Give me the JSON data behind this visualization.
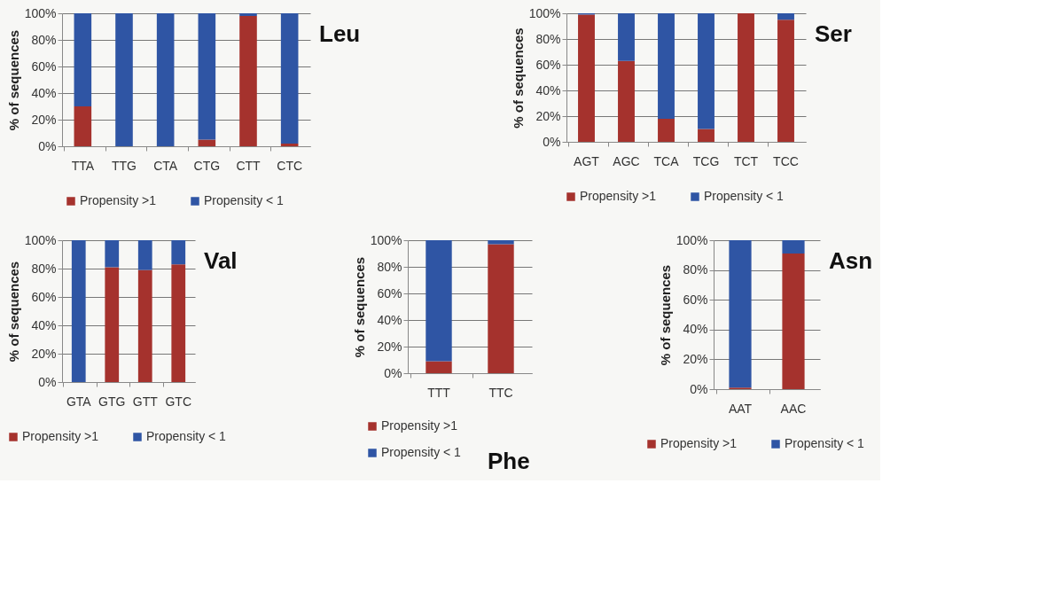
{
  "chart_data": [
    {
      "type": "bar",
      "title": "Leu",
      "ylabel": "% of sequences",
      "categories": [
        "TTA",
        "TTG",
        "CTA",
        "CTG",
        "CTT",
        "CTC"
      ],
      "stacked": true,
      "legend": "bottom",
      "grid": "y",
      "series": [
        {
          "name": "Propensity >1",
          "color": "#a5322d",
          "values": [
            30,
            0,
            0,
            5,
            98,
            2
          ]
        },
        {
          "name": "Propensity < 1",
          "color": "#2f55a4",
          "values": [
            70,
            100,
            100,
            95,
            2,
            98
          ]
        }
      ],
      "ylim": [
        0,
        100
      ],
      "yticks": [
        {
          "value": 0,
          "label": "0%"
        },
        {
          "value": 20,
          "label": "20%"
        },
        {
          "value": 40,
          "label": "40%"
        },
        {
          "value": 60,
          "label": "60%"
        },
        {
          "value": 80,
          "label": "80%"
        },
        {
          "value": 100,
          "label": "100%"
        }
      ]
    },
    {
      "type": "bar",
      "title": "Ser",
      "ylabel": "% of sequences",
      "categories": [
        "AGT",
        "AGC",
        "TCA",
        "TCG",
        "TCT",
        "TCC"
      ],
      "stacked": true,
      "legend": "bottom",
      "grid": "y",
      "series": [
        {
          "name": "Propensity >1",
          "color": "#a5322d",
          "values": [
            99,
            63,
            18,
            10,
            100,
            95
          ]
        },
        {
          "name": "Propensity < 1",
          "color": "#2f55a4",
          "values": [
            1,
            37,
            82,
            90,
            0,
            5
          ]
        }
      ],
      "ylim": [
        0,
        100
      ],
      "yticks": [
        {
          "value": 0,
          "label": "0%"
        },
        {
          "value": 20,
          "label": "20%"
        },
        {
          "value": 40,
          "label": "40%"
        },
        {
          "value": 60,
          "label": "60%"
        },
        {
          "value": 80,
          "label": "80%"
        },
        {
          "value": 100,
          "label": "100%"
        }
      ]
    },
    {
      "type": "bar",
      "title": "Val",
      "ylabel": "% of sequences",
      "categories": [
        "GTA",
        "GTG",
        "GTT",
        "GTC"
      ],
      "stacked": true,
      "legend": "bottom",
      "grid": "y",
      "series": [
        {
          "name": "Propensity >1",
          "color": "#a5322d",
          "values": [
            0,
            81,
            79,
            83
          ]
        },
        {
          "name": "Propensity < 1",
          "color": "#2f55a4",
          "values": [
            100,
            19,
            21,
            17
          ]
        }
      ],
      "ylim": [
        0,
        100
      ],
      "yticks": [
        {
          "value": 0,
          "label": "0%"
        },
        {
          "value": 20,
          "label": "20%"
        },
        {
          "value": 40,
          "label": "40%"
        },
        {
          "value": 60,
          "label": "60%"
        },
        {
          "value": 80,
          "label": "80%"
        },
        {
          "value": 100,
          "label": "100%"
        }
      ]
    },
    {
      "type": "bar",
      "title": "Phe",
      "ylabel": "% of sequences",
      "categories": [
        "TTT",
        "TTC"
      ],
      "stacked": true,
      "legend": "bottom left",
      "grid": "y",
      "series": [
        {
          "name": "Propensity >1",
          "color": "#a5322d",
          "values": [
            9,
            97
          ]
        },
        {
          "name": "Propensity < 1",
          "color": "#2f55a4",
          "values": [
            91,
            3
          ]
        }
      ],
      "ylim": [
        0,
        100
      ],
      "yticks": [
        {
          "value": 0,
          "label": "0%"
        },
        {
          "value": 20,
          "label": "20%"
        },
        {
          "value": 40,
          "label": "40%"
        },
        {
          "value": 60,
          "label": "60%"
        },
        {
          "value": 80,
          "label": "80%"
        },
        {
          "value": 100,
          "label": "100%"
        }
      ]
    },
    {
      "type": "bar",
      "title": "Asn",
      "ylabel": "% of sequences",
      "categories": [
        "AAT",
        "AAC"
      ],
      "stacked": true,
      "legend": "bottom",
      "grid": "y",
      "series": [
        {
          "name": "Propensity >1",
          "color": "#a5322d",
          "values": [
            1,
            91
          ]
        },
        {
          "name": "Propensity < 1",
          "color": "#2f55a4",
          "values": [
            99,
            9
          ]
        }
      ],
      "ylim": [
        0,
        100
      ],
      "yticks": [
        {
          "value": 0,
          "label": "0%"
        },
        {
          "value": 20,
          "label": "20%"
        },
        {
          "value": 40,
          "label": "40%"
        },
        {
          "value": 60,
          "label": "60%"
        },
        {
          "value": 80,
          "label": "80%"
        },
        {
          "value": 100,
          "label": "100%"
        }
      ]
    }
  ]
}
